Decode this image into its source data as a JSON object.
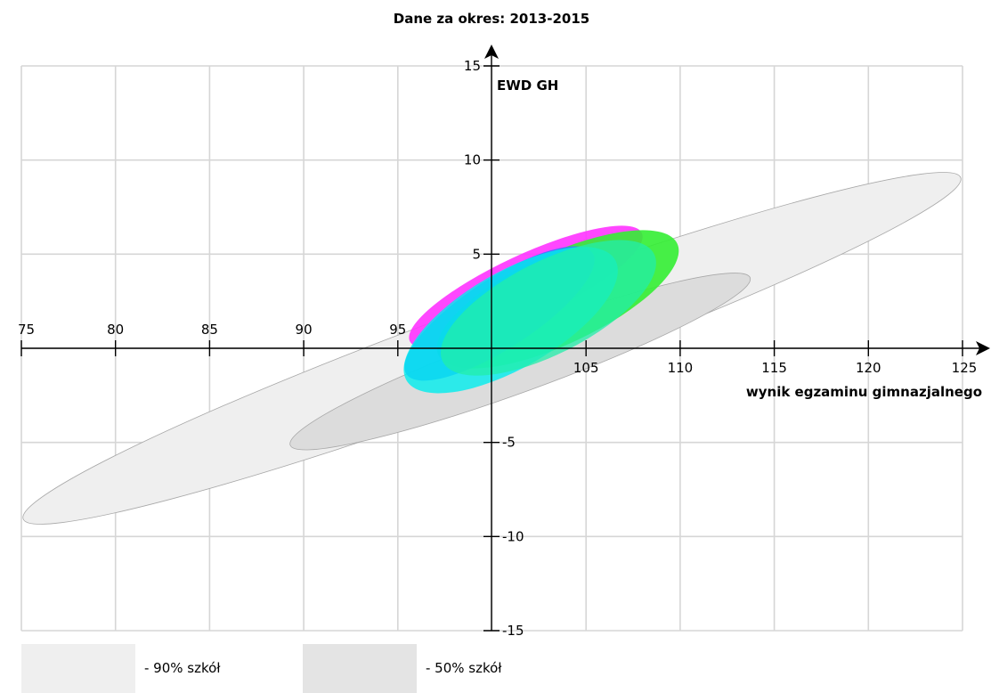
{
  "chart_data": {
    "type": "scatter",
    "title": "Dane za okres: 2013-2015",
    "xlabel": "wynik egzaminu gimnazjalnego",
    "ylabel": "EWD GH",
    "xlim": [
      75,
      125
    ],
    "ylim": [
      -15,
      15
    ],
    "x_ticks": [
      75,
      80,
      85,
      90,
      95,
      105,
      110,
      115,
      120,
      125
    ],
    "y_ticks": [
      15,
      10,
      5,
      -5,
      -10,
      -15
    ],
    "grid": true,
    "bands": [
      {
        "label": "- 90% szkół",
        "color": "#efefef",
        "cx": 100,
        "cy": 0,
        "rx": 26.5,
        "ry": 2.4,
        "angle_deg": 20,
        "opacity": 1
      },
      {
        "label": "- 50% szkół",
        "color": "#dcdcdc",
        "cx": 101.5,
        "cy": -0.7,
        "rx": 13,
        "ry": 1.6,
        "angle_deg": 20,
        "opacity": 1
      }
    ],
    "series": [
      {
        "color": "#ff33ff",
        "cx": 101.8,
        "cy": 3.25,
        "rx": 6.8,
        "ry": 1.7,
        "angle_deg": 25,
        "opacity": 0.9
      },
      {
        "color": "#33ee33",
        "cx": 103.5,
        "cy": 2.6,
        "rx": 7.0,
        "ry": 2.4,
        "angle_deg": 25,
        "opacity": 0.9
      },
      {
        "color": "#3377ff",
        "cx": 100.4,
        "cy": 1.85,
        "rx": 5.9,
        "ry": 1.85,
        "angle_deg": 33,
        "opacity": 0.85
      },
      {
        "color": "#00eeee",
        "cx": 101.0,
        "cy": 1.5,
        "rx": 6.4,
        "ry": 2.55,
        "angle_deg": 30,
        "opacity": 0.8
      },
      {
        "color": "#22eeaa",
        "cx": 103.0,
        "cy": 2.15,
        "rx": 6.3,
        "ry": 2.45,
        "angle_deg": 27,
        "opacity": 0.75
      }
    ],
    "legend": [
      {
        "label": "- 90% szkół",
        "color": "#efefef"
      },
      {
        "label": "- 50% szkół",
        "color": "#e4e4e4"
      }
    ],
    "legend_position": "bottom-left"
  }
}
